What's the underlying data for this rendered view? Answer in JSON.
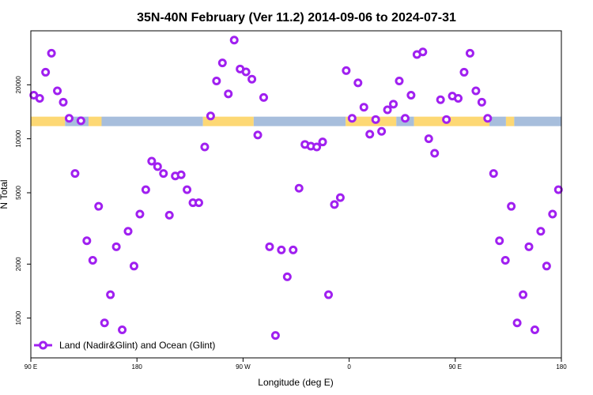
{
  "chart_data": {
    "type": "scatter",
    "title": "35N-40N February (Ver 11.2)   2014-09-06 to 2024-07-31",
    "xlabel": "Longitude (deg E)",
    "ylabel": "N Total",
    "x_tick_labels": [
      "90 E",
      "180",
      "90 W",
      "0",
      "90 E",
      "180"
    ],
    "x_tick_values": [
      90,
      180,
      270,
      360,
      450,
      540
    ],
    "xlim": [
      90,
      540
    ],
    "y_scale": "log",
    "y_tick_labels": [
      "1000",
      "2000",
      "5000",
      "10000",
      "20000"
    ],
    "y_tick_values": [
      1000,
      2000,
      5000,
      10000,
      20000
    ],
    "ylim": [
      600,
      40000
    ],
    "series": [
      {
        "name": "Land (Nadir&Glint) and Ocean (Glint)",
        "color": "#a020f0",
        "x": [
          92.5,
          97.5,
          102.5,
          107.5,
          112.5,
          117.5,
          122.5,
          127.5,
          132.5,
          137.5,
          142.5,
          147.5,
          152.5,
          157.5,
          162.5,
          167.5,
          172.5,
          177.5,
          182.5,
          187.5,
          192.5,
          197.5,
          202.5,
          207.5,
          212.5,
          217.5,
          222.5,
          227.5,
          232.5,
          237.5,
          242.5,
          247.5,
          252.5,
          257.5,
          262.5,
          267.5,
          272.5,
          277.5,
          282.5,
          287.5,
          292.5,
          297.5,
          302.5,
          307.5,
          312.5,
          317.5,
          322.5,
          327.5,
          332.5,
          337.5,
          342.5,
          347.5,
          352.5,
          357.5,
          362.5,
          367.5,
          372.5,
          377.5,
          382.5,
          387.5,
          392.5,
          397.5,
          402.5,
          407.5,
          412.5,
          417.5,
          422.5,
          427.5,
          432.5,
          437.5,
          442.5,
          447.5,
          452.5,
          457.5,
          462.5,
          467.5,
          472.5,
          477.5,
          482.5,
          487.5,
          492.5,
          497.5,
          502.5,
          507.5,
          512.5,
          517.5,
          522.5,
          527.5,
          532.5,
          537.5
        ],
        "y": [
          17500,
          16800,
          23500,
          30000,
          18500,
          16000,
          13000,
          6400,
          12600,
          2700,
          2100,
          4200,
          940,
          1350,
          2500,
          860,
          3050,
          1950,
          3800,
          5200,
          7500,
          7000,
          6400,
          3750,
          6200,
          6300,
          5200,
          4400,
          4400,
          9000,
          13400,
          21000,
          26500,
          17800,
          35500,
          24500,
          23600,
          21500,
          10500,
          17000,
          2500,
          800,
          2400,
          1700,
          2400,
          5300,
          9300,
          9100,
          9000,
          9600,
          1350,
          4300,
          4700,
          24000,
          13000,
          20500,
          15000,
          10600,
          12800,
          11000,
          14500,
          15600,
          21000,
          13000,
          17500,
          29500,
          30500,
          10000,
          8300,
          16500,
          12800,
          17300,
          16800,
          23500,
          30000,
          18500,
          16000,
          13000,
          6400,
          2700,
          2100,
          4200,
          940,
          1350,
          2500,
          860,
          3050,
          1950,
          3800,
          5200
        ]
      }
    ],
    "band": {
      "value": 12500,
      "land_color": "#fdd874",
      "ocean_color": "#a7bedc",
      "segments": [
        {
          "from": 90,
          "to": 119,
          "type": "land"
        },
        {
          "from": 119,
          "to": 139,
          "type": "ocean"
        },
        {
          "from": 139,
          "to": 150,
          "type": "land"
        },
        {
          "from": 150,
          "to": 236,
          "type": "ocean"
        },
        {
          "from": 236,
          "to": 279,
          "type": "land"
        },
        {
          "from": 279,
          "to": 357,
          "type": "ocean"
        },
        {
          "from": 357,
          "to": 400,
          "type": "land"
        },
        {
          "from": 400,
          "to": 415,
          "type": "ocean"
        },
        {
          "from": 415,
          "to": 479,
          "type": "land"
        },
        {
          "from": 479,
          "to": 493,
          "type": "ocean"
        },
        {
          "from": 493,
          "to": 500,
          "type": "land"
        },
        {
          "from": 500,
          "to": 540,
          "type": "ocean"
        }
      ]
    },
    "legend": {
      "position": "bottom-left",
      "label": "Land (Nadir&Glint) and Ocean (Glint)"
    }
  }
}
